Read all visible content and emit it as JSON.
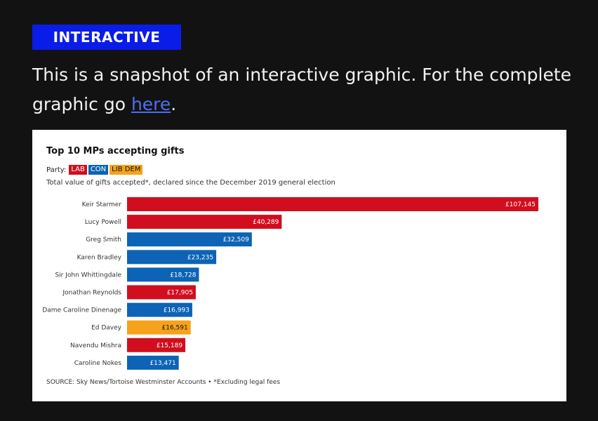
{
  "header": {
    "badge": "INTERACTIVE",
    "intro_text": "This is a snapshot of an interactive graphic. For the complete graphic go ",
    "link_text": "here",
    "intro_end": "."
  },
  "chart": {
    "party_label": "Party:",
    "parties": [
      {
        "code": "LAB",
        "color": "#d10e1e"
      },
      {
        "code": "CON",
        "color": "#0d63b5"
      },
      {
        "code": "LIB DEM",
        "color": "#f6a21a"
      }
    ],
    "source": "SOURCE: Sky News/Tortoise Westminster Accounts • *Excluding legal fees"
  },
  "chart_data": {
    "type": "bar",
    "orientation": "horizontal",
    "title": "Top 10 MPs accepting gifts",
    "subtitle": "Total value of gifts accepted*, declared since the December 2019 general election",
    "categories": [
      "Keir Starmer",
      "Lucy Powell",
      "Greg Smith",
      "Karen Bradley",
      "Sir John Whittingdale",
      "Jonathan Reynolds",
      "Dame Caroline Dinenage",
      "Ed Davey",
      "Navendu Mishra",
      "Caroline Nokes"
    ],
    "values": [
      107145,
      40289,
      32509,
      23235,
      18728,
      17905,
      16993,
      16591,
      15189,
      13471
    ],
    "labels": [
      "£107,145",
      "£40,289",
      "£32,509",
      "£23,235",
      "£18,728",
      "£17,905",
      "£16,993",
      "£16,591",
      "£15,189",
      "£13,471"
    ],
    "party": [
      "LAB",
      "LAB",
      "CON",
      "CON",
      "CON",
      "LAB",
      "CON",
      "LIB DEM",
      "LAB",
      "CON"
    ],
    "xlim": [
      0,
      107145
    ],
    "grid": false,
    "legend": "top-left"
  }
}
